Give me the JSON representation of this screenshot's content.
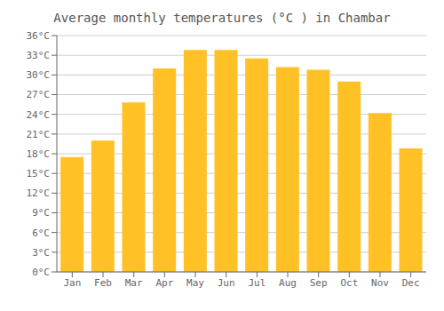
{
  "chart_data": {
    "type": "bar",
    "title": "Average monthly temperatures (°C ) in Chambar",
    "categories": [
      "Jan",
      "Feb",
      "Mar",
      "Apr",
      "May",
      "Jun",
      "Jul",
      "Aug",
      "Sep",
      "Oct",
      "Nov",
      "Dec"
    ],
    "values": [
      17.5,
      20.0,
      25.8,
      31.0,
      33.8,
      33.8,
      32.5,
      31.2,
      30.8,
      29.0,
      24.2,
      18.8
    ],
    "color": "#FFC125",
    "ylim": [
      0,
      36
    ],
    "yticks": [
      {
        "value": 0,
        "label": "0°C"
      },
      {
        "value": 3,
        "label": "3°C"
      },
      {
        "value": 6,
        "label": "6°C"
      },
      {
        "value": 9,
        "label": "9°C"
      },
      {
        "value": 12,
        "label": "12°C"
      },
      {
        "value": 15,
        "label": "15°C"
      },
      {
        "value": 18,
        "label": "18°C"
      },
      {
        "value": 21,
        "label": "21°C"
      },
      {
        "value": 24,
        "label": "24°C"
      },
      {
        "value": 27,
        "label": "27°C"
      },
      {
        "value": 30,
        "label": "30°C"
      },
      {
        "value": 33,
        "label": "33°C"
      },
      {
        "value": 36,
        "label": "36°C"
      }
    ],
    "grid": true
  }
}
